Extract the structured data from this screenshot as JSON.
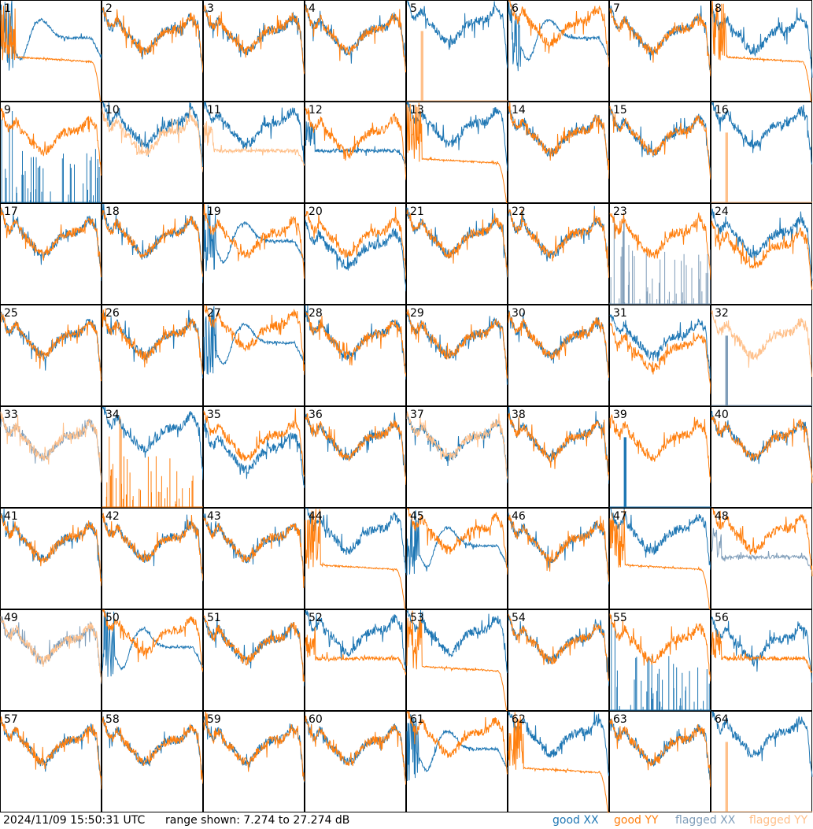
{
  "footer": {
    "timestamp": "2024/11/09 15:50:31 UTC",
    "range_text": "range shown: 7.274 to 27.274 dB",
    "legend": [
      {
        "label": "good XX",
        "color": "#1f77b4"
      },
      {
        "label": "good YY",
        "color": "#ff7f0e"
      },
      {
        "label": "flagged XX",
        "color": "#7f9db9"
      },
      {
        "label": "flagged YY",
        "color": "#ffc08a"
      }
    ]
  },
  "chart_data": {
    "type": "line",
    "panel_grid": [
      8,
      8
    ],
    "ylim": [
      7.274,
      27.274
    ],
    "y_unit": "dB",
    "series_names": [
      "good XX",
      "good YY",
      "flagged XX",
      "flagged YY"
    ],
    "panels": [
      {
        "label": "1",
        "xx": "bump",
        "yy": "drop",
        "xx_flag": false,
        "yy_flag": false
      },
      {
        "label": "2",
        "xx": "normal",
        "yy": "normal",
        "xx_flag": false,
        "yy_flag": false
      },
      {
        "label": "3",
        "xx": "normal",
        "yy": "normal",
        "xx_flag": false,
        "yy_flag": false
      },
      {
        "label": "4",
        "xx": "normal",
        "yy": "normal",
        "xx_flag": false,
        "yy_flag": false
      },
      {
        "label": "5",
        "xx": "high",
        "yy": "spike",
        "xx_flag": false,
        "yy_flag": true
      },
      {
        "label": "6",
        "xx": "bump",
        "yy": "high",
        "xx_flag": false,
        "yy_flag": false
      },
      {
        "label": "7",
        "xx": "normal",
        "yy": "normal",
        "xx_flag": false,
        "yy_flag": false
      },
      {
        "label": "8",
        "xx": "normal",
        "yy": "drop",
        "xx_flag": false,
        "yy_flag": false
      },
      {
        "label": "9",
        "xx": "spikes",
        "yy": "normal",
        "xx_flag": false,
        "yy_flag": false
      },
      {
        "label": "10",
        "xx": "high",
        "yy": "normal",
        "xx_flag": false,
        "yy_flag": true
      },
      {
        "label": "11",
        "xx": "high",
        "yy": "flat",
        "xx_flag": false,
        "yy_flag": true
      },
      {
        "label": "12",
        "xx": "flat",
        "yy": "normal",
        "xx_flag": false,
        "yy_flag": false
      },
      {
        "label": "13",
        "xx": "high",
        "yy": "drop",
        "xx_flag": false,
        "yy_flag": false
      },
      {
        "label": "14",
        "xx": "normal",
        "yy": "normal",
        "xx_flag": false,
        "yy_flag": false
      },
      {
        "label": "15",
        "xx": "normal",
        "yy": "normal",
        "xx_flag": false,
        "yy_flag": false
      },
      {
        "label": "16",
        "xx": "high",
        "yy": "spike",
        "xx_flag": false,
        "yy_flag": true
      },
      {
        "label": "17",
        "xx": "normal",
        "yy": "normal",
        "xx_flag": false,
        "yy_flag": false
      },
      {
        "label": "18",
        "xx": "normal",
        "yy": "normal",
        "xx_flag": false,
        "yy_flag": false
      },
      {
        "label": "19",
        "xx": "bump",
        "yy": "normal",
        "xx_flag": false,
        "yy_flag": false
      },
      {
        "label": "20",
        "xx": "low",
        "yy": "normal",
        "xx_flag": false,
        "yy_flag": false
      },
      {
        "label": "21",
        "xx": "normal",
        "yy": "normal",
        "xx_flag": false,
        "yy_flag": false
      },
      {
        "label": "22",
        "xx": "normal",
        "yy": "normal",
        "xx_flag": false,
        "yy_flag": false
      },
      {
        "label": "23",
        "xx": "spikes",
        "yy": "normal",
        "xx_flag": true,
        "yy_flag": false
      },
      {
        "label": "24",
        "xx": "normal",
        "yy": "low",
        "xx_flag": false,
        "yy_flag": false
      },
      {
        "label": "25",
        "xx": "normal",
        "yy": "normal",
        "xx_flag": false,
        "yy_flag": false
      },
      {
        "label": "26",
        "xx": "normal",
        "yy": "normal",
        "xx_flag": false,
        "yy_flag": false
      },
      {
        "label": "27",
        "xx": "bump",
        "yy": "high",
        "xx_flag": false,
        "yy_flag": false
      },
      {
        "label": "28",
        "xx": "normal",
        "yy": "normal",
        "xx_flag": false,
        "yy_flag": false
      },
      {
        "label": "29",
        "xx": "normal",
        "yy": "normal",
        "xx_flag": false,
        "yy_flag": false
      },
      {
        "label": "30",
        "xx": "normal",
        "yy": "normal",
        "xx_flag": false,
        "yy_flag": false
      },
      {
        "label": "31",
        "xx": "normal",
        "yy": "low",
        "xx_flag": false,
        "yy_flag": false
      },
      {
        "label": "32",
        "xx": "spike",
        "yy": "normal",
        "xx_flag": true,
        "yy_flag": true
      },
      {
        "label": "33",
        "xx": "normal",
        "yy": "normal",
        "xx_flag": true,
        "yy_flag": true
      },
      {
        "label": "34",
        "xx": "high",
        "yy": "spikes",
        "xx_flag": false,
        "yy_flag": false
      },
      {
        "label": "35",
        "xx": "low",
        "yy": "normal",
        "xx_flag": false,
        "yy_flag": false
      },
      {
        "label": "36",
        "xx": "normal",
        "yy": "normal",
        "xx_flag": false,
        "yy_flag": false
      },
      {
        "label": "37",
        "xx": "normal",
        "yy": "normal",
        "xx_flag": false,
        "yy_flag": true
      },
      {
        "label": "38",
        "xx": "normal",
        "yy": "normal",
        "xx_flag": false,
        "yy_flag": false
      },
      {
        "label": "39",
        "xx": "spike",
        "yy": "normal",
        "xx_flag": false,
        "yy_flag": false
      },
      {
        "label": "40",
        "xx": "normal",
        "yy": "normal",
        "xx_flag": false,
        "yy_flag": false
      },
      {
        "label": "41",
        "xx": "normal",
        "yy": "normal",
        "xx_flag": false,
        "yy_flag": false
      },
      {
        "label": "42",
        "xx": "normal",
        "yy": "normal",
        "xx_flag": false,
        "yy_flag": false
      },
      {
        "label": "43",
        "xx": "normal",
        "yy": "normal",
        "xx_flag": false,
        "yy_flag": false
      },
      {
        "label": "44",
        "xx": "high",
        "yy": "drop",
        "xx_flag": false,
        "yy_flag": false
      },
      {
        "label": "45",
        "xx": "bump",
        "yy": "high",
        "xx_flag": false,
        "yy_flag": false
      },
      {
        "label": "46",
        "xx": "normal",
        "yy": "normal",
        "xx_flag": false,
        "yy_flag": false
      },
      {
        "label": "47",
        "xx": "high",
        "yy": "drop",
        "xx_flag": false,
        "yy_flag": false
      },
      {
        "label": "48",
        "xx": "flat",
        "yy": "high",
        "xx_flag": true,
        "yy_flag": false
      },
      {
        "label": "49",
        "xx": "normal",
        "yy": "normal",
        "xx_flag": true,
        "yy_flag": true
      },
      {
        "label": "50",
        "xx": "bump",
        "yy": "high",
        "xx_flag": false,
        "yy_flag": false
      },
      {
        "label": "51",
        "xx": "normal",
        "yy": "normal",
        "xx_flag": false,
        "yy_flag": false
      },
      {
        "label": "52",
        "xx": "high",
        "yy": "flat",
        "xx_flag": false,
        "yy_flag": false
      },
      {
        "label": "53",
        "xx": "high",
        "yy": "drop",
        "xx_flag": false,
        "yy_flag": false
      },
      {
        "label": "54",
        "xx": "normal",
        "yy": "normal",
        "xx_flag": false,
        "yy_flag": false
      },
      {
        "label": "55",
        "xx": "spikes",
        "yy": "normal",
        "xx_flag": false,
        "yy_flag": false
      },
      {
        "label": "56",
        "xx": "normal",
        "yy": "flat",
        "xx_flag": false,
        "yy_flag": false
      },
      {
        "label": "57",
        "xx": "normal",
        "yy": "normal",
        "xx_flag": false,
        "yy_flag": false
      },
      {
        "label": "58",
        "xx": "normal",
        "yy": "normal",
        "xx_flag": false,
        "yy_flag": false
      },
      {
        "label": "59",
        "xx": "normal",
        "yy": "normal",
        "xx_flag": false,
        "yy_flag": false
      },
      {
        "label": "60",
        "xx": "normal",
        "yy": "normal",
        "xx_flag": false,
        "yy_flag": false
      },
      {
        "label": "61",
        "xx": "bump",
        "yy": "high",
        "xx_flag": false,
        "yy_flag": false
      },
      {
        "label": "62",
        "xx": "high",
        "yy": "drop",
        "xx_flag": false,
        "yy_flag": false
      },
      {
        "label": "63",
        "xx": "normal",
        "yy": "normal",
        "xx_flag": false,
        "yy_flag": false
      },
      {
        "label": "64",
        "xx": "high",
        "yy": "spike",
        "xx_flag": false,
        "yy_flag": true
      }
    ]
  }
}
